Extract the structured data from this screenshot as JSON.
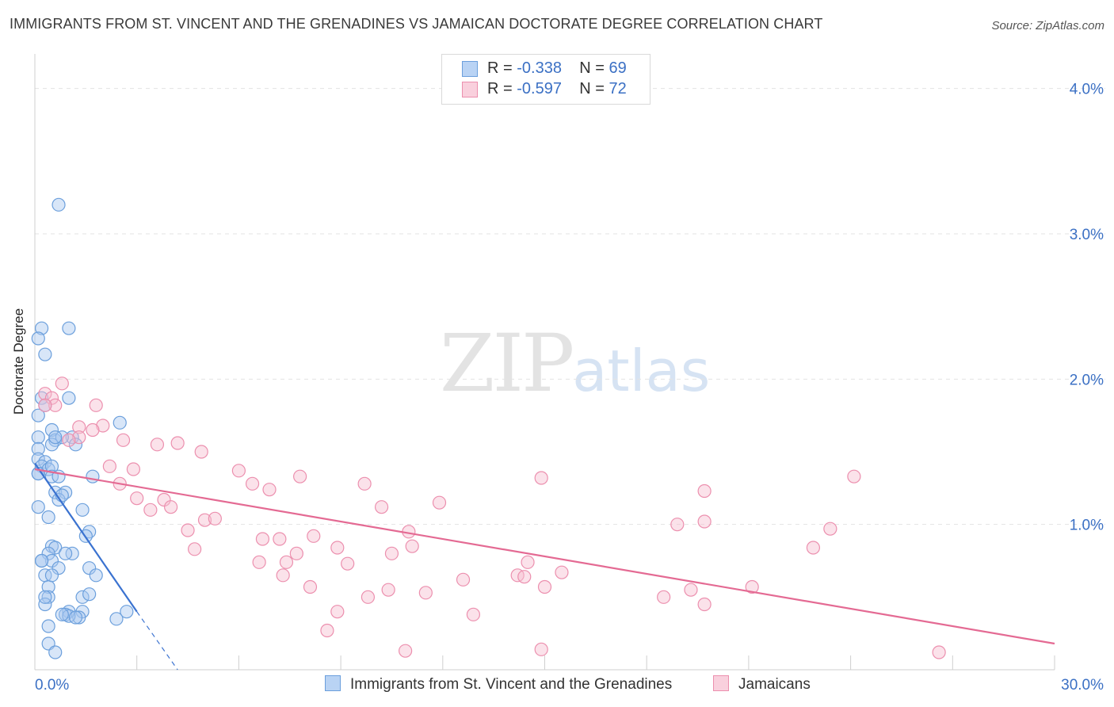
{
  "title": "IMMIGRANTS FROM ST. VINCENT AND THE GRENADINES VS JAMAICAN DOCTORATE DEGREE CORRELATION CHART",
  "source": "Source: ZipAtlas.com",
  "watermark": {
    "zip": "ZIP",
    "atlas": "atlas"
  },
  "legend": {
    "rows": [
      {
        "r_label": "R = ",
        "r_value": "-0.338",
        "n_label": "N = ",
        "n_value": "69"
      },
      {
        "r_label": "R = ",
        "r_value": "-0.597",
        "n_label": "N = ",
        "n_value": "72"
      }
    ]
  },
  "colors": {
    "blue_fill": "#a8c8f0",
    "blue_stroke": "#6b9fdc",
    "blue_line": "#3a72d0",
    "pink_fill": "#f6bfd0",
    "pink_stroke": "#ec8fae",
    "pink_line": "#e46a93",
    "tick_label": "#3b70c4",
    "grid": "#e3e3e3"
  },
  "chart_data": {
    "type": "scatter",
    "title": "IMMIGRANTS FROM ST. VINCENT AND THE GRENADINES VS JAMAICAN DOCTORATE DEGREE CORRELATION CHART",
    "xlabel": "",
    "ylabel": "Doctorate Degree",
    "xlim": [
      0,
      30
    ],
    "ylim": [
      0,
      4.2
    ],
    "x_tick_labels": [
      "0.0%",
      "30.0%"
    ],
    "y_ticks": [
      1.0,
      2.0,
      3.0,
      4.0
    ],
    "y_tick_labels": [
      "1.0%",
      "2.0%",
      "3.0%",
      "4.0%"
    ],
    "grid": true,
    "series": [
      {
        "name": "Immigrants from St. Vincent and the Grenadines",
        "color": "#6b9fdc",
        "points": [
          [
            0.7,
            3.2
          ],
          [
            0.2,
            2.35
          ],
          [
            1.0,
            2.35
          ],
          [
            0.1,
            2.28
          ],
          [
            0.3,
            2.17
          ],
          [
            1.0,
            1.87
          ],
          [
            0.2,
            1.87
          ],
          [
            0.3,
            1.82
          ],
          [
            0.1,
            1.75
          ],
          [
            2.5,
            1.7
          ],
          [
            0.5,
            1.65
          ],
          [
            0.1,
            1.6
          ],
          [
            1.1,
            1.6
          ],
          [
            0.6,
            1.58
          ],
          [
            0.8,
            1.6
          ],
          [
            1.2,
            1.55
          ],
          [
            0.5,
            1.55
          ],
          [
            0.1,
            1.52
          ],
          [
            0.1,
            1.45
          ],
          [
            0.3,
            1.43
          ],
          [
            0.2,
            1.4
          ],
          [
            0.4,
            1.38
          ],
          [
            0.5,
            1.4
          ],
          [
            0.1,
            1.35
          ],
          [
            0.5,
            1.33
          ],
          [
            0.7,
            1.33
          ],
          [
            1.7,
            1.33
          ],
          [
            0.6,
            1.22
          ],
          [
            0.9,
            1.22
          ],
          [
            0.7,
            1.17
          ],
          [
            0.8,
            1.2
          ],
          [
            0.1,
            1.12
          ],
          [
            1.4,
            1.1
          ],
          [
            0.4,
            1.05
          ],
          [
            1.6,
            0.95
          ],
          [
            1.5,
            0.92
          ],
          [
            0.5,
            0.85
          ],
          [
            0.6,
            0.84
          ],
          [
            0.4,
            0.8
          ],
          [
            1.1,
            0.8
          ],
          [
            0.5,
            0.75
          ],
          [
            0.2,
            0.75
          ],
          [
            0.7,
            0.7
          ],
          [
            1.6,
            0.7
          ],
          [
            0.3,
            0.65
          ],
          [
            1.8,
            0.65
          ],
          [
            0.4,
            0.57
          ],
          [
            0.4,
            0.5
          ],
          [
            1.4,
            0.5
          ],
          [
            1.6,
            0.52
          ],
          [
            0.3,
            0.45
          ],
          [
            1.0,
            0.4
          ],
          [
            0.9,
            0.38
          ],
          [
            1.4,
            0.4
          ],
          [
            1.3,
            0.36
          ],
          [
            2.7,
            0.4
          ],
          [
            2.4,
            0.35
          ],
          [
            0.4,
            0.3
          ],
          [
            0.4,
            0.18
          ],
          [
            1.0,
            0.37
          ],
          [
            0.8,
            0.38
          ],
          [
            0.3,
            0.5
          ],
          [
            0.2,
            0.75
          ],
          [
            0.6,
            1.6
          ],
          [
            0.1,
            1.35
          ],
          [
            0.9,
            0.8
          ],
          [
            1.2,
            0.36
          ],
          [
            0.5,
            0.65
          ],
          [
            0.6,
            0.12
          ]
        ],
        "trend": {
          "x": [
            0,
            3.0
          ],
          "y": [
            1.42,
            0.4
          ]
        },
        "trend_dashed": {
          "x": [
            3.0,
            4.2
          ],
          "y": [
            0.4,
            0.0
          ]
        }
      },
      {
        "name": "Jamaicans",
        "color": "#ec8fae",
        "points": [
          [
            0.8,
            1.97
          ],
          [
            0.3,
            1.9
          ],
          [
            0.5,
            1.87
          ],
          [
            0.6,
            1.82
          ],
          [
            0.3,
            1.82
          ],
          [
            1.8,
            1.82
          ],
          [
            1.3,
            1.67
          ],
          [
            2.0,
            1.68
          ],
          [
            1.7,
            1.65
          ],
          [
            1.3,
            1.6
          ],
          [
            1.0,
            1.58
          ],
          [
            2.6,
            1.58
          ],
          [
            3.6,
            1.55
          ],
          [
            4.2,
            1.56
          ],
          [
            4.9,
            1.5
          ],
          [
            2.2,
            1.4
          ],
          [
            2.9,
            1.38
          ],
          [
            6.0,
            1.37
          ],
          [
            7.8,
            1.33
          ],
          [
            6.4,
            1.28
          ],
          [
            2.5,
            1.28
          ],
          [
            6.9,
            1.24
          ],
          [
            9.7,
            1.28
          ],
          [
            14.9,
            1.32
          ],
          [
            19.7,
            1.23
          ],
          [
            24.1,
            1.33
          ],
          [
            3.0,
            1.18
          ],
          [
            3.8,
            1.17
          ],
          [
            4.0,
            1.12
          ],
          [
            3.4,
            1.1
          ],
          [
            10.2,
            1.12
          ],
          [
            11.9,
            1.15
          ],
          [
            5.0,
            1.03
          ],
          [
            5.3,
            1.04
          ],
          [
            18.9,
            1.0
          ],
          [
            19.7,
            1.02
          ],
          [
            23.4,
            0.97
          ],
          [
            4.5,
            0.96
          ],
          [
            6.7,
            0.9
          ],
          [
            8.2,
            0.92
          ],
          [
            11.0,
            0.95
          ],
          [
            7.2,
            0.9
          ],
          [
            8.9,
            0.84
          ],
          [
            11.1,
            0.85
          ],
          [
            4.7,
            0.83
          ],
          [
            10.5,
            0.8
          ],
          [
            7.7,
            0.8
          ],
          [
            6.6,
            0.74
          ],
          [
            7.4,
            0.74
          ],
          [
            9.2,
            0.73
          ],
          [
            14.5,
            0.74
          ],
          [
            15.5,
            0.67
          ],
          [
            7.3,
            0.65
          ],
          [
            11.5,
            0.53
          ],
          [
            12.6,
            0.62
          ],
          [
            14.2,
            0.65
          ],
          [
            14.4,
            0.64
          ],
          [
            15.0,
            0.57
          ],
          [
            18.5,
            0.5
          ],
          [
            19.3,
            0.55
          ],
          [
            21.1,
            0.57
          ],
          [
            8.1,
            0.57
          ],
          [
            10.4,
            0.55
          ],
          [
            9.8,
            0.5
          ],
          [
            8.9,
            0.4
          ],
          [
            19.7,
            0.45
          ],
          [
            12.9,
            0.38
          ],
          [
            8.6,
            0.27
          ],
          [
            10.9,
            0.13
          ],
          [
            14.9,
            0.14
          ],
          [
            26.6,
            0.12
          ],
          [
            22.9,
            0.84
          ]
        ],
        "trend": {
          "x": [
            0,
            30
          ],
          "y": [
            1.38,
            0.18
          ]
        }
      }
    ]
  },
  "bottom_legend": [
    {
      "label": "Immigrants from St. Vincent and the Grenadines"
    },
    {
      "label": "Jamaicans"
    }
  ]
}
